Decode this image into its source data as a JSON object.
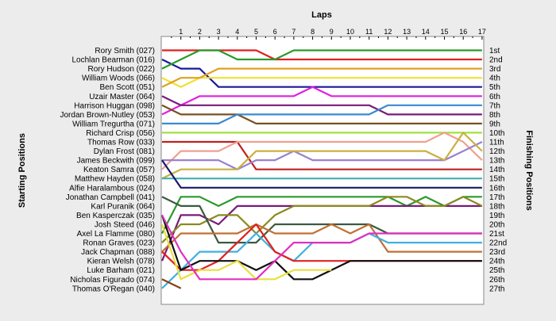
{
  "chart_data": {
    "type": "line",
    "title": "Laps",
    "ylabel_left": "Starting Positions",
    "ylabel_right": "Finishing Positions",
    "x_ticks": [
      1,
      2,
      3,
      4,
      5,
      6,
      7,
      8,
      9,
      10,
      11,
      12,
      13,
      14,
      15,
      16,
      17
    ],
    "drivers": [
      "Rory Smith (027)",
      "Lochlan Bearman (016)",
      "Rory Hudson (022)",
      "William Woods (066)",
      "Ben Scott (051)",
      "Uzair Master (064)",
      "Harrison Huggan (098)",
      "Jordan Brown-Nutley (053)",
      "William Tregurtha (071)",
      "Richard Crisp (056)",
      "Thomas Row (033)",
      "Dylan Frost (081)",
      "James Beckwith (099)",
      "Keaton Samra (057)",
      "Matthew Hayden (058)",
      "Alfie Haralambous (024)",
      "Jonathan Campbell (041)",
      "Karl Puranik (064)",
      "Ben Kasperczak (035)",
      "Josh Steed (046)",
      "Axel La Flamme (080)",
      "Ronan Graves (023)",
      "Jack Chapman (088)",
      "Kieran Welsh (078)",
      "Luke Barham (021)",
      "Nicholas Figurado (074)",
      "Thomas O'Regan (040)"
    ],
    "finishing_labels": [
      "1st",
      "2nd",
      "3rd",
      "4th",
      "5th",
      "6th",
      "7th",
      "8th",
      "9th",
      "10th",
      "11th",
      "12th",
      "13th",
      "14th",
      "15th",
      "16th",
      "17th",
      "18th",
      "19th",
      "20th",
      "21st",
      "22nd",
      "23rd",
      "24th",
      "25th",
      "26th",
      "27th"
    ],
    "series": [
      {
        "color": "#e02020",
        "values": [
          1,
          1,
          1,
          1,
          1,
          1,
          2,
          2,
          2,
          2,
          2,
          2,
          2,
          2,
          2,
          2,
          2,
          2
        ]
      },
      {
        "color": "#1a1a9a",
        "values": [
          2,
          3,
          3,
          5,
          5,
          5,
          5,
          5,
          5,
          5,
          5,
          5,
          5,
          5,
          5,
          5,
          5,
          5
        ]
      },
      {
        "color": "#2a9a2a",
        "values": [
          3,
          2,
          1,
          1,
          2,
          2,
          2,
          1,
          1,
          1,
          1,
          1,
          1,
          1,
          1,
          1,
          1,
          1
        ]
      },
      {
        "color": "#f0e030",
        "values": [
          4,
          5,
          4,
          4,
          4,
          4,
          4,
          4,
          4,
          4,
          4,
          4,
          4,
          4,
          4,
          4,
          4,
          4
        ]
      },
      {
        "color": "#e0a020",
        "values": [
          5,
          4,
          4,
          3,
          3,
          3,
          3,
          3,
          3,
          3,
          3,
          3,
          3,
          3,
          3,
          3,
          3,
          3
        ]
      },
      {
        "color": "#e020e0",
        "values": [
          8,
          7,
          6,
          6,
          6,
          6,
          6,
          6,
          5,
          6,
          6,
          6,
          6,
          6,
          6,
          6,
          6,
          6
        ]
      },
      {
        "color": "#7a1a7a",
        "values": [
          6,
          7,
          7,
          7,
          7,
          7,
          7,
          7,
          7,
          7,
          7,
          7,
          8,
          8,
          8,
          8,
          8,
          8
        ]
      },
      {
        "color": "#7a5020",
        "values": [
          7,
          8,
          8,
          8,
          8,
          9,
          9,
          9,
          9,
          9,
          9,
          9,
          9,
          9,
          9,
          9,
          9,
          9
        ]
      },
      {
        "color": "#3a8ad0",
        "values": [
          9,
          9,
          9,
          9,
          8,
          8,
          8,
          8,
          8,
          8,
          8,
          8,
          7,
          7,
          7,
          7,
          7,
          7
        ]
      },
      {
        "color": "#a0e040",
        "values": [
          10,
          10,
          10,
          10,
          10,
          10,
          10,
          10,
          10,
          10,
          10,
          10,
          10,
          10,
          10,
          10,
          10,
          10
        ]
      },
      {
        "color": "#c02020",
        "values": [
          11,
          11,
          11,
          11,
          11,
          14,
          14,
          14,
          14,
          14,
          14,
          14,
          14,
          14,
          14,
          14,
          14,
          14
        ]
      },
      {
        "color": "#f0a090",
        "values": [
          14,
          12,
          12,
          12,
          11,
          11,
          11,
          11,
          11,
          11,
          11,
          11,
          11,
          11,
          11,
          10,
          11,
          13
        ]
      },
      {
        "color": "#9a80d0",
        "values": [
          13,
          13,
          13,
          13,
          14,
          13,
          13,
          12,
          13,
          13,
          13,
          13,
          13,
          13,
          13,
          13,
          12,
          11
        ]
      },
      {
        "color": "#c8b040",
        "values": [
          15,
          14,
          14,
          14,
          14,
          12,
          12,
          12,
          12,
          12,
          12,
          12,
          12,
          12,
          12,
          13,
          10,
          12
        ]
      },
      {
        "color": "#40b0b0",
        "values": [
          15,
          15,
          15,
          15,
          15,
          15,
          15,
          15,
          15,
          15,
          15,
          15,
          15,
          15,
          15,
          15,
          15,
          15
        ]
      },
      {
        "color": "#1a1a6a",
        "values": [
          13,
          16,
          16,
          16,
          16,
          16,
          16,
          16,
          16,
          16,
          16,
          16,
          16,
          16,
          16,
          16,
          16,
          16
        ]
      },
      {
        "color": "#2a9a2a",
        "values": [
          21,
          17,
          17,
          18,
          17,
          17,
          17,
          17,
          17,
          17,
          17,
          17,
          17,
          18,
          17,
          18,
          17,
          17
        ]
      },
      {
        "color": "#7a1a7a",
        "values": [
          24,
          19,
          19,
          20,
          18,
          18,
          18,
          18,
          18,
          18,
          18,
          18,
          18,
          18,
          18,
          18,
          18,
          18
        ]
      },
      {
        "color": "#8a8a20",
        "values": [
          22,
          20,
          20,
          19,
          19,
          21,
          19,
          18,
          18,
          18,
          18,
          18,
          17,
          17,
          18,
          18,
          17,
          18
        ]
      },
      {
        "color": "#3a5a40",
        "values": [
          17,
          18,
          18,
          22,
          22,
          22,
          20,
          20,
          20,
          20,
          20,
          20,
          21,
          21,
          21,
          21,
          21,
          21
        ]
      },
      {
        "color": "#c07030",
        "values": [
          23,
          21,
          21,
          21,
          21,
          20,
          21,
          21,
          21,
          20,
          21,
          20,
          23,
          23,
          23,
          23,
          23,
          23
        ]
      },
      {
        "color": "#40b0e0",
        "values": [
          27,
          25,
          23,
          23,
          23,
          21,
          23,
          24,
          22,
          22,
          22,
          21,
          22,
          22,
          22,
          22,
          22,
          22
        ]
      },
      {
        "color": "#e02020",
        "values": [
          23,
          25,
          25,
          24,
          22,
          20,
          23,
          24,
          24,
          24,
          24,
          24,
          24,
          24,
          24,
          24,
          24,
          24
        ]
      },
      {
        "color": "#101010",
        "values": [
          19,
          25,
          24,
          24,
          24,
          25,
          24,
          26,
          26,
          25,
          24,
          24,
          24,
          24,
          24,
          24,
          24,
          24
        ]
      },
      {
        "color": "#e8e040",
        "values": [
          20,
          26,
          25,
          25,
          24,
          26,
          26,
          25,
          25,
          25
        ]
      },
      {
        "color": "#e030c0",
        "values": [
          19,
          23,
          26,
          26,
          26,
          26,
          24,
          22,
          22,
          22,
          22,
          21,
          21,
          21,
          21,
          21,
          21,
          21
        ]
      },
      {
        "color": "#8a4010",
        "values": [
          26,
          27
        ]
      }
    ]
  }
}
